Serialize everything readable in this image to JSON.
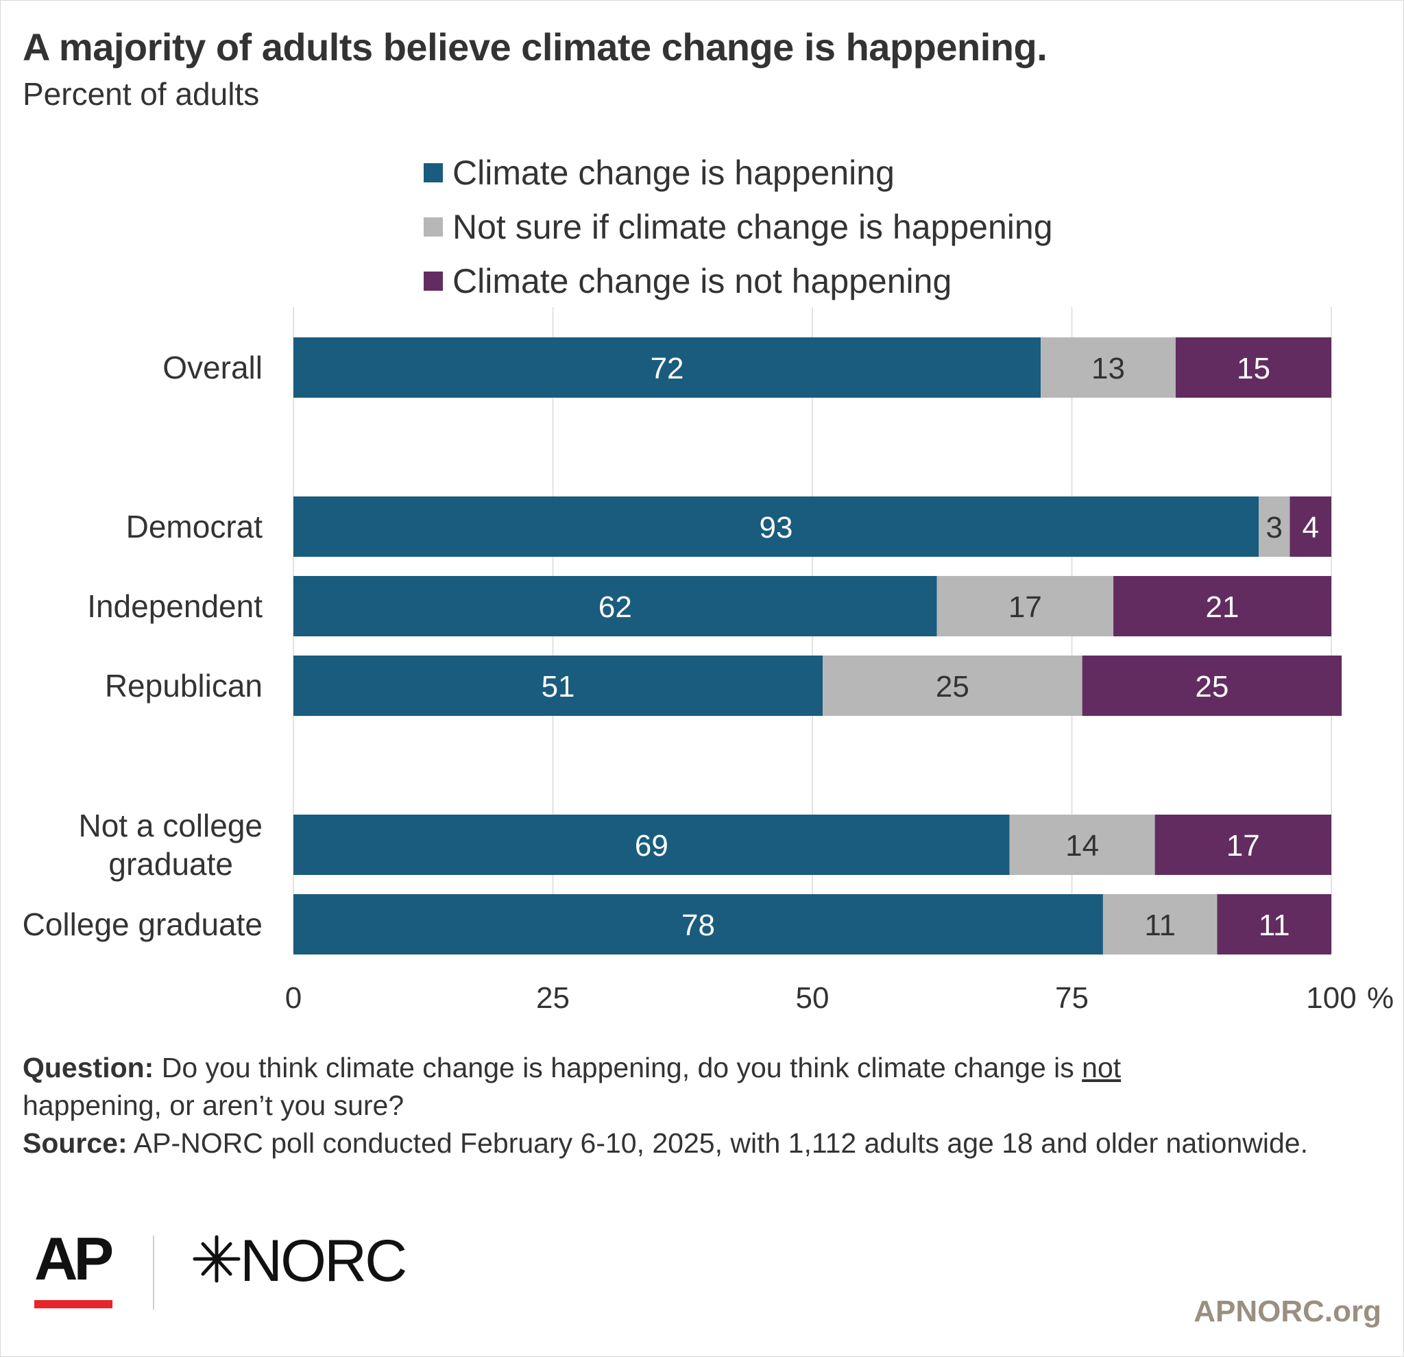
{
  "title": "A majority of adults believe climate change is happening.",
  "subtitle": "Percent of adults",
  "legend": [
    {
      "label": "Climate change is happening",
      "color": "#1a5c7e"
    },
    {
      "label": "Not sure if climate change is happening",
      "color": "#b7b7b7"
    },
    {
      "label": "Climate change is not happening",
      "color": "#632c61"
    }
  ],
  "chart_data": {
    "type": "bar",
    "orientation": "horizontal",
    "stacked": true,
    "categories": [
      "Overall",
      "Democrat",
      "Independent",
      "Republican",
      "Not a college graduate",
      "College graduate"
    ],
    "groups": [
      [
        "Overall"
      ],
      [
        "Democrat",
        "Independent",
        "Republican"
      ],
      [
        "Not a college graduate",
        "College graduate"
      ]
    ],
    "series": [
      {
        "name": "Climate change is happening",
        "color": "#1a5c7e",
        "label_color": "#ffffff",
        "values": [
          72,
          93,
          62,
          51,
          69,
          78
        ]
      },
      {
        "name": "Not sure if climate change is happening",
        "color": "#b7b7b7",
        "label_color": "#333333",
        "values": [
          13,
          3,
          17,
          25,
          14,
          11
        ]
      },
      {
        "name": "Climate change is not happening",
        "color": "#632c61",
        "label_color": "#ffffff",
        "values": [
          15,
          4,
          21,
          25,
          17,
          11
        ]
      }
    ],
    "xlim": [
      0,
      100
    ],
    "xticks": [
      "0",
      "25",
      "50",
      "75",
      "100"
    ],
    "x_unit": "%",
    "grid": true
  },
  "notes": {
    "question_label": "Question:",
    "question_text_1": "Do you think climate change is happening, do you think climate change is",
    "question_underlined": "not",
    "question_text_2": "happening, or aren’t you sure?",
    "source_label": "Source:",
    "source_text": "AP-NORC poll conducted February 6-10, 2025, with 1,112 adults age 18 and older nationwide."
  },
  "logos": {
    "ap": "AP",
    "norc": "NORC",
    "ap_accent": "#e8252a"
  },
  "site": "APNORC.org"
}
